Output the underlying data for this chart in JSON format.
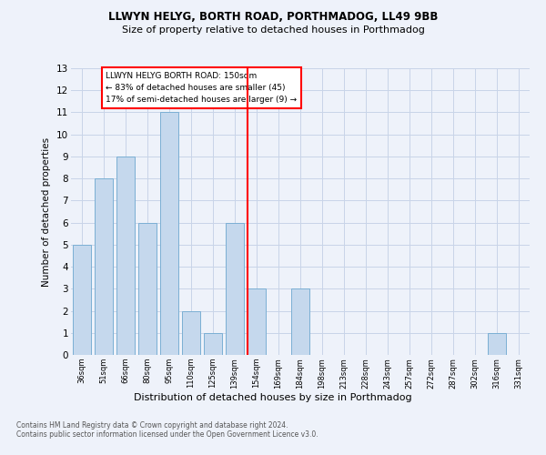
{
  "title1": "LLWYN HELYG, BORTH ROAD, PORTHMADOG, LL49 9BB",
  "title2": "Size of property relative to detached houses in Porthmadog",
  "xlabel": "Distribution of detached houses by size in Porthmadog",
  "ylabel": "Number of detached properties",
  "categories": [
    "36sqm",
    "51sqm",
    "66sqm",
    "80sqm",
    "95sqm",
    "110sqm",
    "125sqm",
    "139sqm",
    "154sqm",
    "169sqm",
    "184sqm",
    "198sqm",
    "213sqm",
    "228sqm",
    "243sqm",
    "257sqm",
    "272sqm",
    "287sqm",
    "302sqm",
    "316sqm",
    "331sqm"
  ],
  "values": [
    5,
    8,
    9,
    6,
    11,
    2,
    1,
    6,
    3,
    0,
    3,
    0,
    0,
    0,
    0,
    0,
    0,
    0,
    0,
    1,
    0
  ],
  "bar_color": "#c5d8ed",
  "bar_edgecolor": "#7bafd4",
  "redline_index": 8.0,
  "redline_label": "LLWYN HELYG BORTH ROAD: 150sqm",
  "annotation_line1": "← 83% of detached houses are smaller (45)",
  "annotation_line2": "17% of semi-detached houses are larger (9) →",
  "ylim": [
    0,
    13
  ],
  "yticks": [
    0,
    1,
    2,
    3,
    4,
    5,
    6,
    7,
    8,
    9,
    10,
    11,
    12,
    13
  ],
  "footer1": "Contains HM Land Registry data © Crown copyright and database right 2024.",
  "footer2": "Contains public sector information licensed under the Open Government Licence v3.0.",
  "bg_color": "#eef2fa",
  "plot_bg_color": "#eef2fa",
  "grid_color": "#c8d4e8"
}
